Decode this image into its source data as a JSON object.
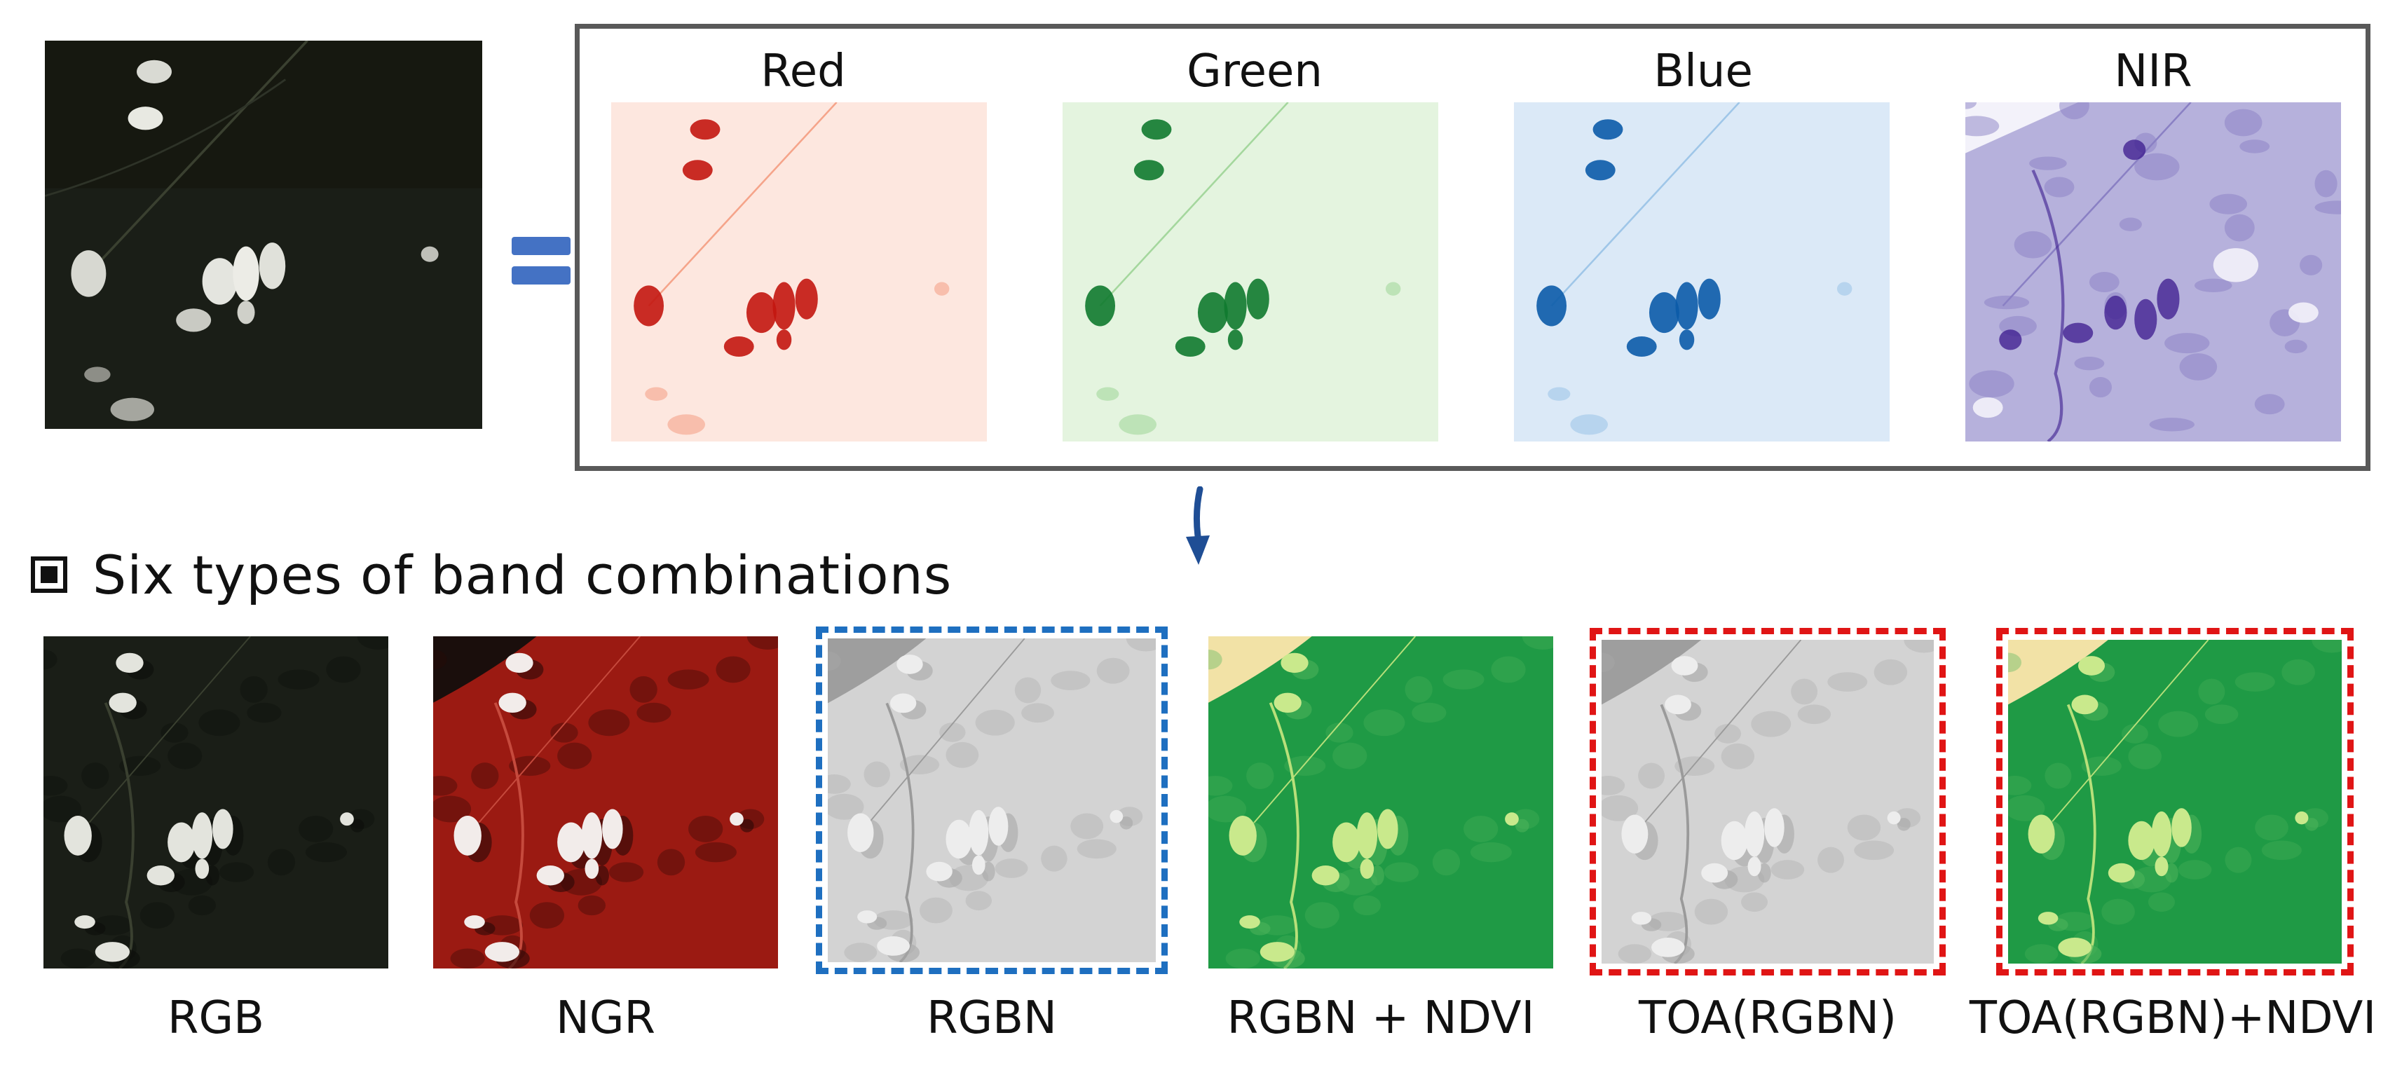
{
  "source_image": {
    "icon": "satellite-rgb-image"
  },
  "equals_sign": {
    "icon": "equals-icon",
    "color": "#4472c4"
  },
  "bands_panel": {
    "border_color": "#595959",
    "bands": [
      {
        "label": "Red",
        "colormap": "reds",
        "base": "#fde7df",
        "mid": "#f5a48a",
        "dark": "#c3160f"
      },
      {
        "label": "Green",
        "colormap": "greens",
        "base": "#e4f4df",
        "mid": "#a4d79d",
        "dark": "#0f7a2f"
      },
      {
        "label": "Blue",
        "colormap": "blues",
        "base": "#dbe9f7",
        "mid": "#9fc6e8",
        "dark": "#0b5ba8"
      },
      {
        "label": "NIR",
        "colormap": "purples",
        "base": "#b6b1dc",
        "mid": "#8a80c4",
        "dark": "#3b1a8e"
      }
    ]
  },
  "arrow": {
    "icon": "down-arrow-icon",
    "color": "#1f4e95"
  },
  "section": {
    "icon": "square-bullet-icon",
    "title": "Six types of band combinations"
  },
  "combinations": [
    {
      "label": "RGB",
      "style": "rgb",
      "frame": "none"
    },
    {
      "label": "NGR",
      "style": "ngr",
      "frame": "none"
    },
    {
      "label": "RGBN",
      "style": "gray",
      "frame": "blue-dashed"
    },
    {
      "label": "RGBN + NDVI",
      "style": "ndvi",
      "frame": "none"
    },
    {
      "label": "TOA(RGBN)",
      "style": "gray",
      "frame": "red-dashed"
    },
    {
      "label": "TOA(RGBN)+NDVI",
      "style": "ndvi",
      "frame": "red-dashed"
    }
  ]
}
